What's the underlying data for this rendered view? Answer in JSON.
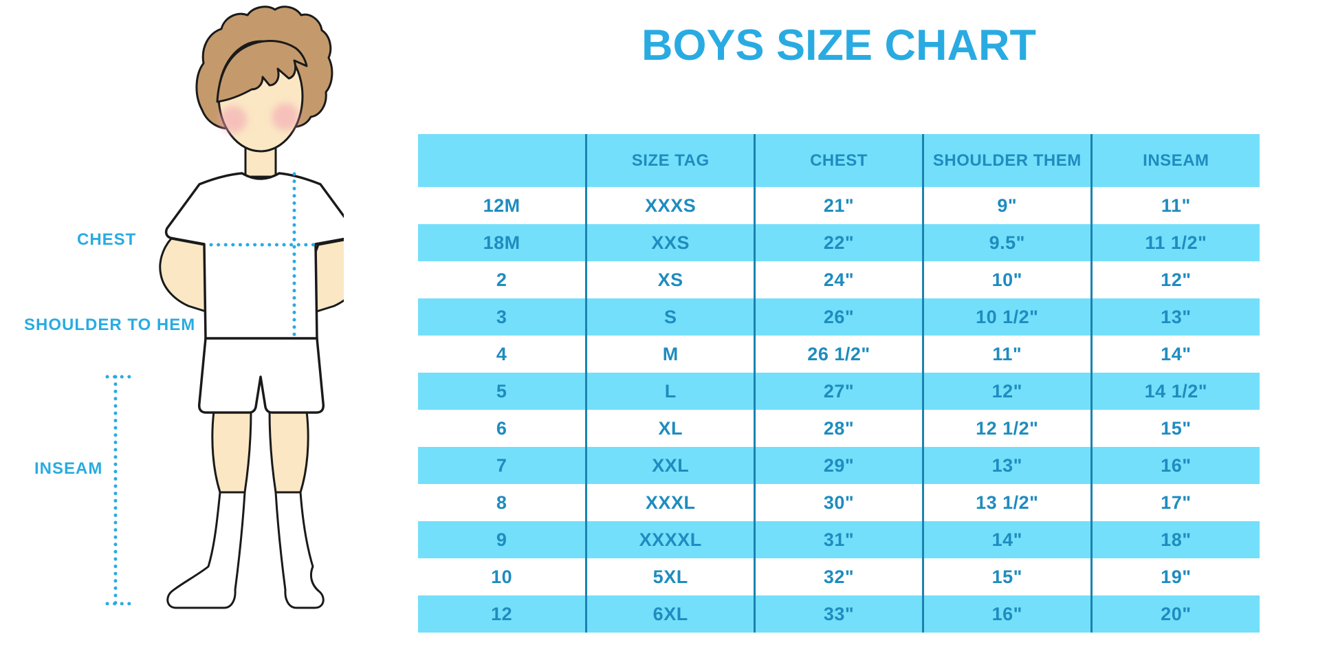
{
  "title": "BOYS SIZE CHART",
  "diagram": {
    "labels": {
      "chest": "CHEST",
      "shoulder_to_hem": "SHOULDER TO HEM",
      "inseam": "INSEAM"
    }
  },
  "chart_data": {
    "type": "table",
    "title": "BOYS SIZE CHART",
    "columns": [
      "",
      "SIZE TAG",
      "CHEST",
      "SHOULDER THEM",
      "INSEAM"
    ],
    "rows": [
      [
        "12M",
        "XXXS",
        "21\"",
        "9\"",
        "11\""
      ],
      [
        "18M",
        "XXS",
        "22\"",
        "9.5\"",
        "11 1/2\""
      ],
      [
        "2",
        "XS",
        "24\"",
        "10\"",
        "12\""
      ],
      [
        "3",
        "S",
        "26\"",
        "10 1/2\"",
        "13\""
      ],
      [
        "4",
        "M",
        "26 1/2\"",
        "11\"",
        "14\""
      ],
      [
        "5",
        "L",
        "27\"",
        "12\"",
        "14 1/2\""
      ],
      [
        "6",
        "XL",
        "28\"",
        "12 1/2\"",
        "15\""
      ],
      [
        "7",
        "XXL",
        "29\"",
        "13\"",
        "16\""
      ],
      [
        "8",
        "XXXL",
        "30\"",
        "13 1/2\"",
        "17\""
      ],
      [
        "9",
        "XXXXL",
        "31\"",
        "14\"",
        "18\""
      ],
      [
        "10",
        "5XL",
        "32\"",
        "15\"",
        "19\""
      ],
      [
        "12",
        "6XL",
        "33\"",
        "16\"",
        "20\""
      ]
    ],
    "layout": {
      "stripe_pattern": "alternating white and light blue rows",
      "header_filled": true
    }
  },
  "colors": {
    "accent_blue": "#29ABE2",
    "row_stripe_blue": "#74DFFA",
    "cell_text_blue": "#1E8CBF",
    "column_divider_blue": "#1A82B0",
    "skin": "#FBE7C4",
    "hair_brown": "#C49A6C",
    "blush_pink": "#F2A3B3",
    "outline": "#1A1A1A"
  }
}
